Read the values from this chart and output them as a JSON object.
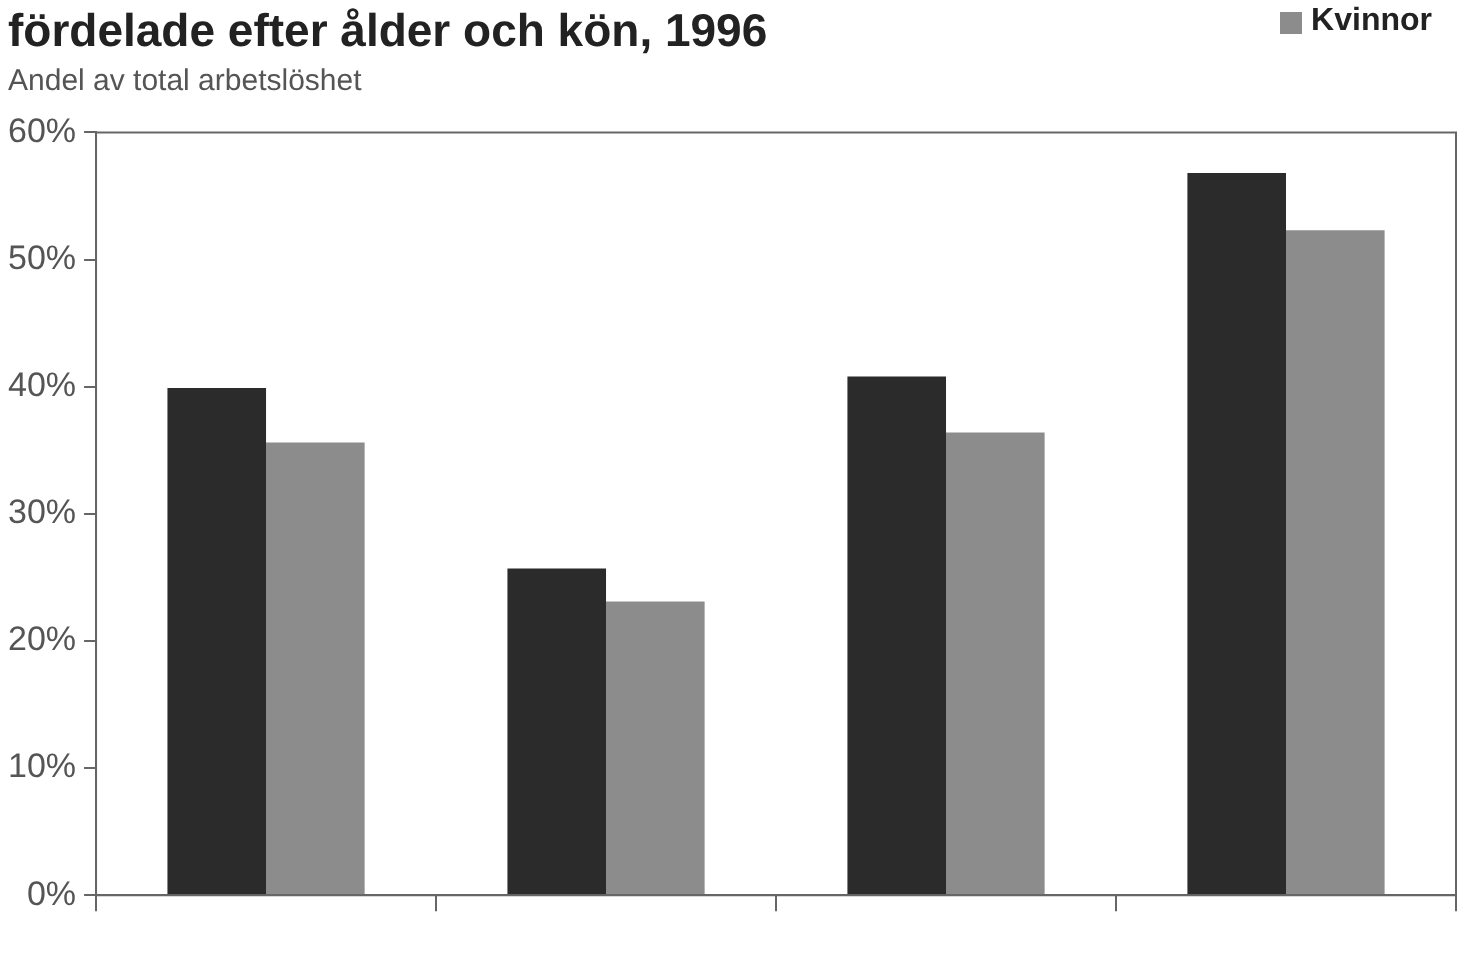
{
  "chart_data": {
    "type": "bar",
    "title": "fördelade efter ålder och kön, 1996",
    "subtitle": "Andel av total arbetslöshet",
    "categories": [
      null,
      null,
      null,
      null
    ],
    "series": [
      {
        "color": "#2b2b2b",
        "values": [
          39.9,
          25.7,
          40.8,
          56.8
        ]
      },
      {
        "name": "Kvinnor",
        "color": "#8c8c8c",
        "values": [
          35.6,
          23.1,
          36.4,
          52.3
        ]
      }
    ],
    "ylim": [
      0,
      60
    ],
    "yticks": [
      {
        "value": 0,
        "label": "0%"
      },
      {
        "value": 10,
        "label": "10%"
      },
      {
        "value": 20,
        "label": "20%"
      },
      {
        "value": 30,
        "label": "30%"
      },
      {
        "value": 40,
        "label": "40%"
      },
      {
        "value": 50,
        "label": "50%"
      },
      {
        "value": 60,
        "label": "60%"
      }
    ],
    "grid": false,
    "legend": "top right"
  }
}
